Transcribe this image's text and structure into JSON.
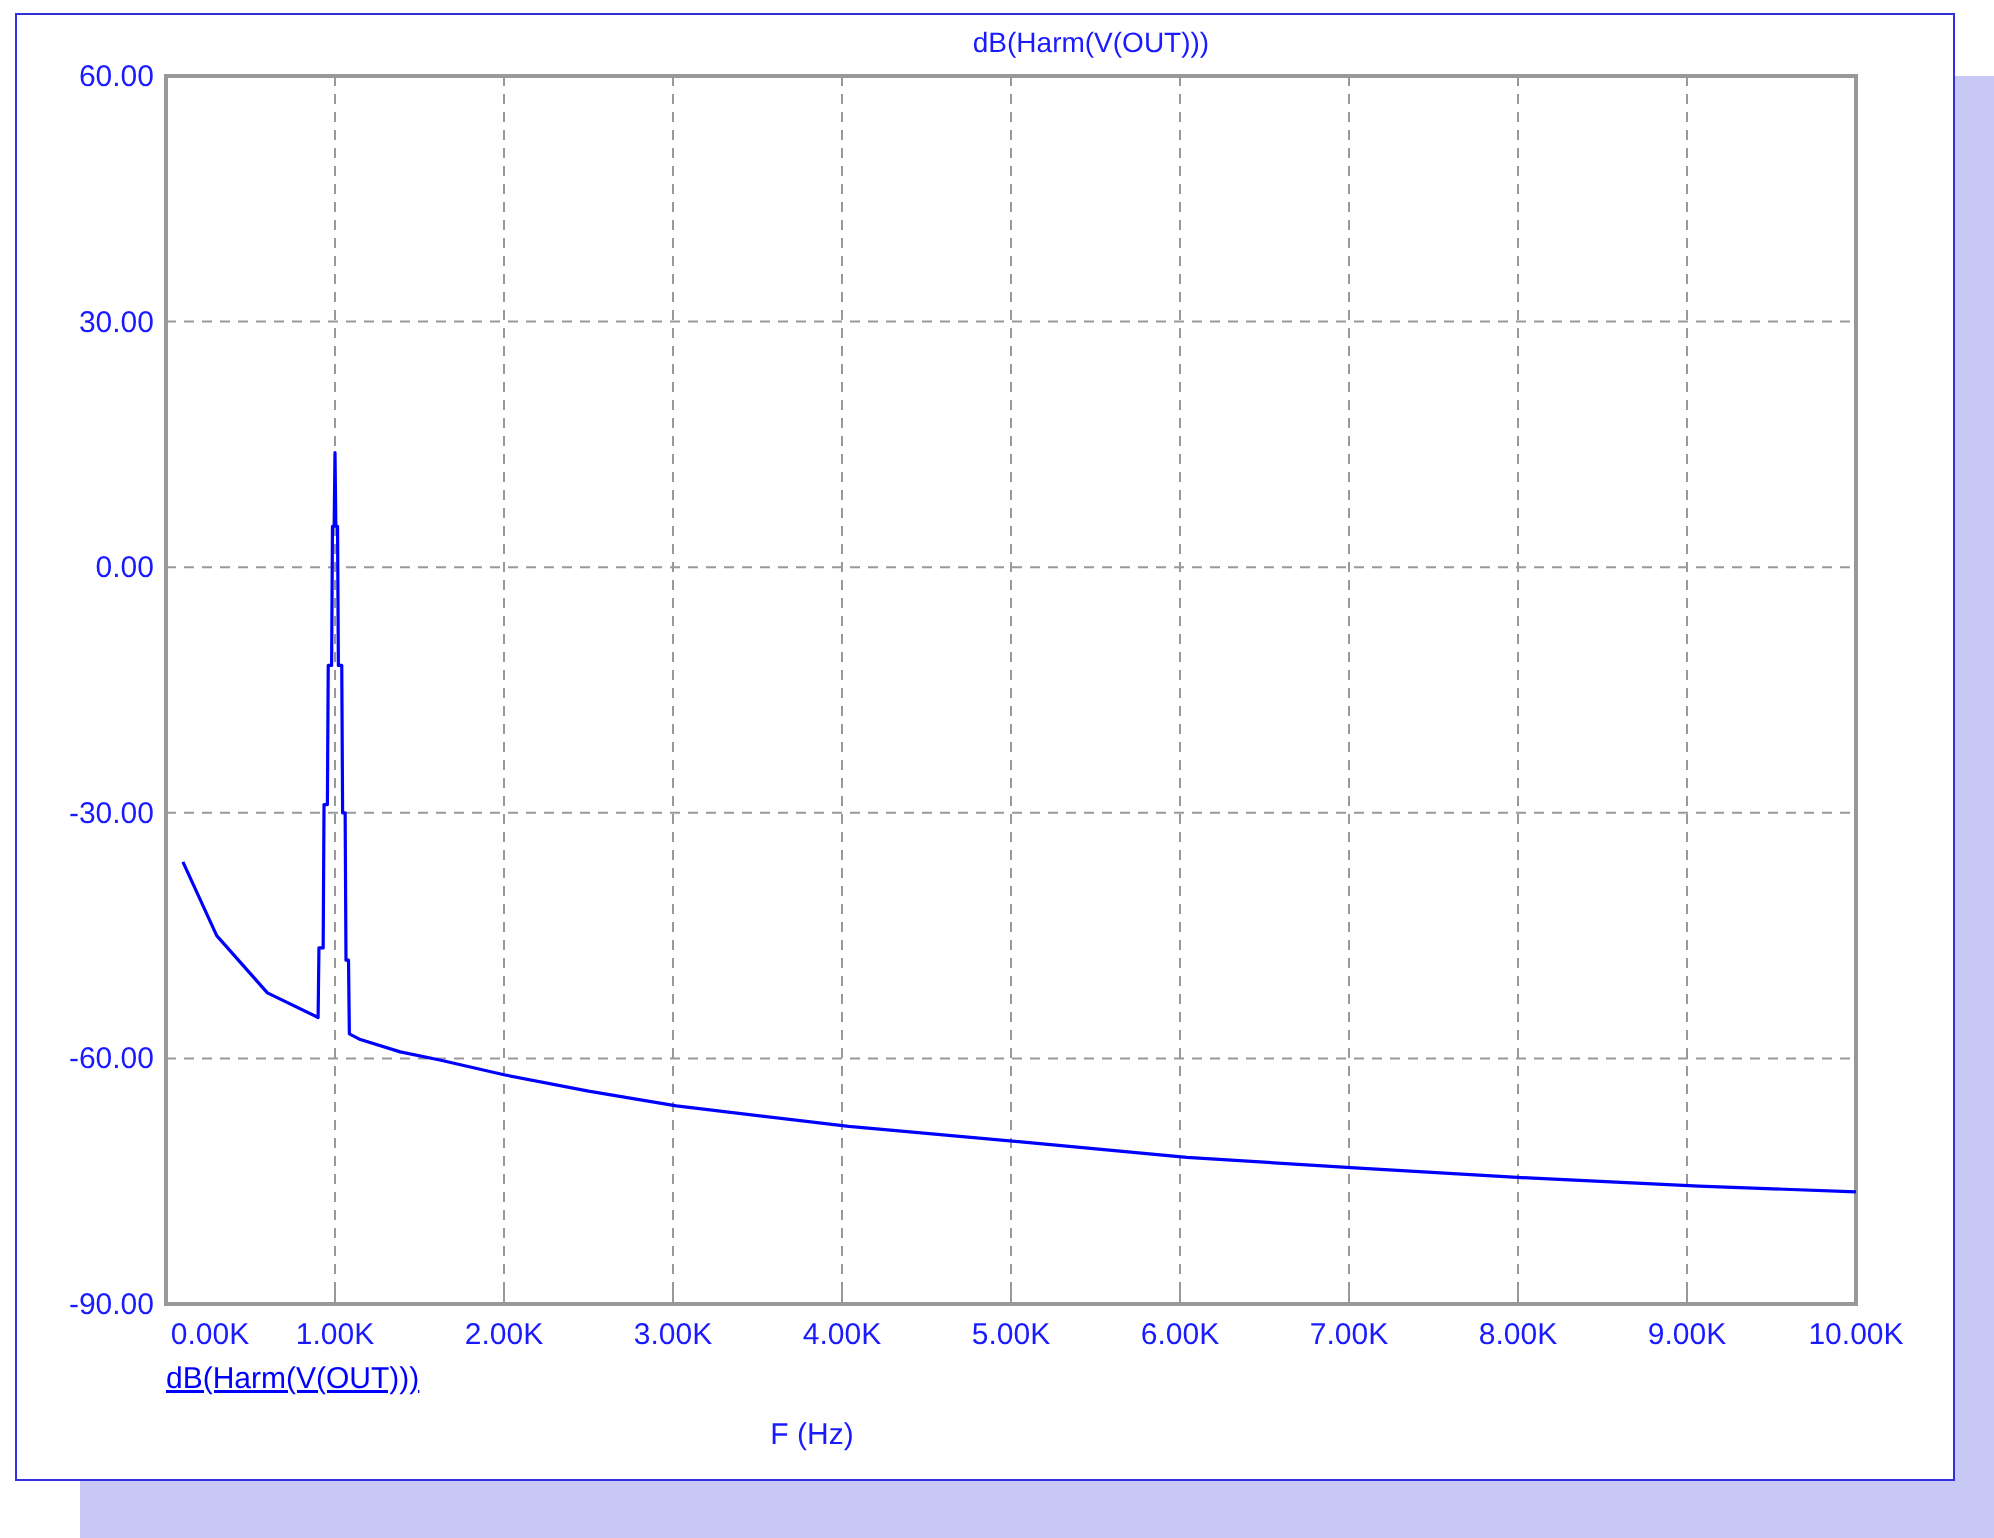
{
  "chart_data": {
    "type": "line",
    "title": "dB(Harm(V(OUT)))",
    "xlabel": "F (Hz)",
    "xlim": [
      0,
      10000
    ],
    "ylim": [
      -90,
      60
    ],
    "xticks": [
      {
        "value": 0,
        "label": "0.00K"
      },
      {
        "value": 1000,
        "label": "1.00K"
      },
      {
        "value": 2000,
        "label": "2.00K"
      },
      {
        "value": 3000,
        "label": "3.00K"
      },
      {
        "value": 4000,
        "label": "4.00K"
      },
      {
        "value": 5000,
        "label": "5.00K"
      },
      {
        "value": 6000,
        "label": "6.00K"
      },
      {
        "value": 7000,
        "label": "7.00K"
      },
      {
        "value": 8000,
        "label": "8.00K"
      },
      {
        "value": 9000,
        "label": "9.00K"
      },
      {
        "value": 10000,
        "label": "10.00K"
      }
    ],
    "yticks": [
      {
        "value": -90,
        "label": "-90.00"
      },
      {
        "value": -60,
        "label": "-60.00"
      },
      {
        "value": -30,
        "label": "-30.00"
      },
      {
        "value": 0,
        "label": "0.00"
      },
      {
        "value": 30,
        "label": "30.00"
      },
      {
        "value": 60,
        "label": "60.00"
      }
    ],
    "grid": true,
    "legend": "bottom left",
    "marker": "none",
    "line_style": "solid",
    "series": [
      {
        "name": "dB(Harm(V(OUT)))",
        "color": "#0000ff",
        "x": [
          100,
          300,
          600,
          900,
          905,
          930,
          935,
          955,
          960,
          980,
          985,
          995,
          1000,
          1005,
          1015,
          1020,
          1040,
          1045,
          1060,
          1065,
          1080,
          1085,
          1150,
          1386,
          1620,
          2000,
          2500,
          3020,
          4040,
          5060,
          6040,
          7060,
          8060,
          9070,
          10000
        ],
        "values": [
          -36,
          -45,
          -52,
          -55,
          -46.5,
          -46.5,
          -29,
          -29,
          -12,
          -12,
          5,
          5,
          14,
          5,
          5,
          -12,
          -12,
          -30,
          -30,
          -48,
          -48,
          -57,
          -57.7,
          -59.2,
          -60.2,
          -62,
          -64,
          -65.8,
          -68.3,
          -70.2,
          -72.1,
          -73.4,
          -74.6,
          -75.6,
          -76.3
        ]
      }
    ]
  }
}
